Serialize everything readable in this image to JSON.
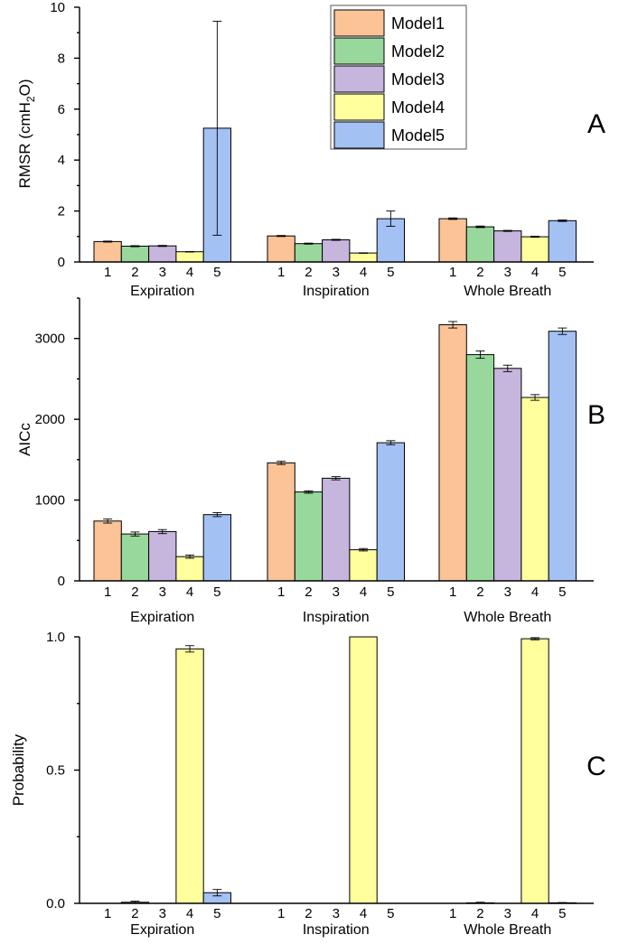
{
  "chart_data": [
    {
      "panel": "A",
      "type": "bar",
      "ylabel": "RMSR (cmH2O)",
      "ylim": [
        0,
        10
      ],
      "yticks": [
        0,
        2,
        4,
        6,
        8,
        10
      ],
      "groups": [
        "Expiration",
        "Inspiration",
        "Whole Breath"
      ],
      "bar_labels": [
        "1",
        "2",
        "3",
        "4",
        "5"
      ],
      "series": [
        {
          "name": "Model1",
          "color": "#FBC396",
          "values": [
            0.8,
            1.02,
            1.7
          ],
          "errors": [
            0.02,
            0.02,
            0.03
          ]
        },
        {
          "name": "Model2",
          "color": "#99D89C",
          "values": [
            0.62,
            0.72,
            1.38
          ],
          "errors": [
            0.02,
            0.02,
            0.03
          ]
        },
        {
          "name": "Model3",
          "color": "#C6B5DD",
          "values": [
            0.63,
            0.87,
            1.22
          ],
          "errors": [
            0.02,
            0.02,
            0.02
          ]
        },
        {
          "name": "Model4",
          "color": "#FFFF9E",
          "values": [
            0.4,
            0.35,
            0.99
          ],
          "errors": [
            0.01,
            0.01,
            0.02
          ]
        },
        {
          "name": "Model5",
          "color": "#A4C1F4",
          "values": [
            5.25,
            1.7,
            1.62
          ],
          "errors": [
            4.2,
            0.3,
            0.03
          ]
        }
      ]
    },
    {
      "panel": "B",
      "type": "bar",
      "ylabel": "AICc",
      "ylim": [
        0,
        3500
      ],
      "yticks": [
        0,
        1000,
        2000,
        3000
      ],
      "groups": [
        "Expiration",
        "Inspiration",
        "Whole Breath"
      ],
      "bar_labels": [
        "1",
        "2",
        "3",
        "4",
        "5"
      ],
      "series": [
        {
          "name": "Model1",
          "color": "#FBC396",
          "values": [
            740,
            1460,
            3170
          ],
          "errors": [
            25,
            20,
            40
          ]
        },
        {
          "name": "Model2",
          "color": "#99D89C",
          "values": [
            580,
            1100,
            2800
          ],
          "errors": [
            25,
            15,
            45
          ]
        },
        {
          "name": "Model3",
          "color": "#C6B5DD",
          "values": [
            610,
            1270,
            2630
          ],
          "errors": [
            25,
            20,
            40
          ]
        },
        {
          "name": "Model4",
          "color": "#FFFF9E",
          "values": [
            300,
            385,
            2270
          ],
          "errors": [
            20,
            15,
            35
          ]
        },
        {
          "name": "Model5",
          "color": "#A4C1F4",
          "values": [
            820,
            1710,
            3090
          ],
          "errors": [
            25,
            25,
            40
          ]
        }
      ]
    },
    {
      "panel": "C",
      "type": "bar",
      "ylabel": "Probability",
      "ylim": [
        0,
        1.0
      ],
      "yticks": [
        0.0,
        0.5,
        1.0
      ],
      "groups": [
        "Expiration",
        "Inspiration",
        "Whole Breath"
      ],
      "bar_labels": [
        "1",
        "2",
        "3",
        "4",
        "5"
      ],
      "series": [
        {
          "name": "Model1",
          "color": "#FBC396",
          "values": [
            0.0,
            0.0,
            0.0
          ],
          "errors": [
            0,
            0,
            0
          ]
        },
        {
          "name": "Model2",
          "color": "#99D89C",
          "values": [
            0.004,
            0.0,
            0.002
          ],
          "errors": [
            0.004,
            0,
            0.002
          ]
        },
        {
          "name": "Model3",
          "color": "#C6B5DD",
          "values": [
            0.0,
            0.0,
            0.0
          ],
          "errors": [
            0,
            0,
            0
          ]
        },
        {
          "name": "Model4",
          "color": "#FFFF9E",
          "values": [
            0.955,
            1.0,
            0.993
          ],
          "errors": [
            0.012,
            0,
            0.004
          ]
        },
        {
          "name": "Model5",
          "color": "#A4C1F4",
          "values": [
            0.04,
            0.0,
            0.002
          ],
          "errors": [
            0.012,
            0,
            0.001
          ]
        }
      ]
    }
  ],
  "panel_letters": [
    "A",
    "B",
    "C"
  ],
  "legend": {
    "items": [
      "Model1",
      "Model2",
      "Model3",
      "Model4",
      "Model5"
    ]
  },
  "panelA_ylabel_parts": {
    "main": "RMSR (cmH",
    "sub": "2",
    "end": "O)"
  }
}
